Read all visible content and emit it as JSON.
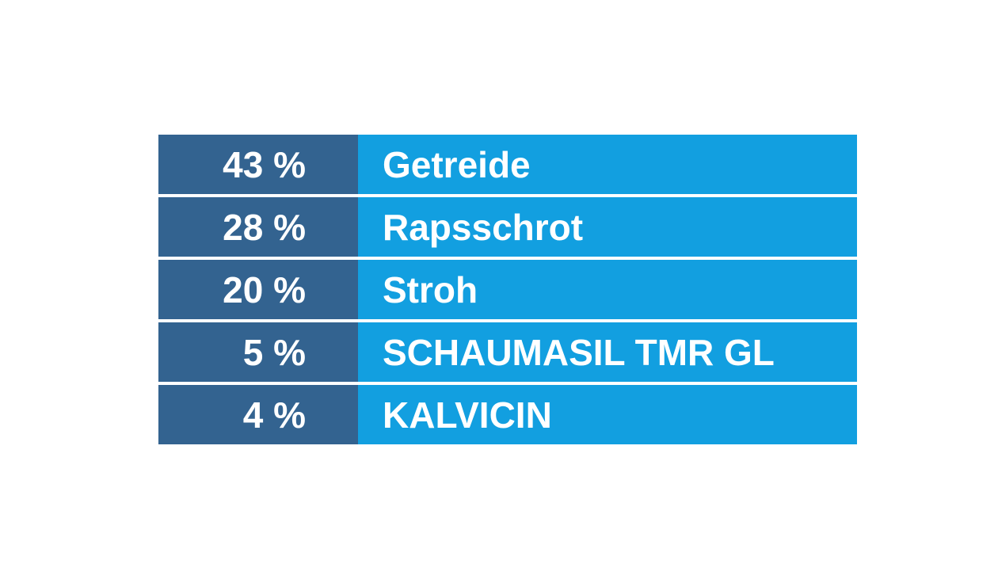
{
  "page": {
    "background_color": "#ffffff"
  },
  "table": {
    "colors": {
      "percent_cell_background": "#336390",
      "label_cell_background": "#129FE0",
      "text": "#ffffff",
      "separator": "#ffffff"
    },
    "rows": [
      {
        "percent": "43 %",
        "label": "Getreide"
      },
      {
        "percent": "28 %",
        "label": "Rapsschrot"
      },
      {
        "percent": "20 %",
        "label": "Stroh"
      },
      {
        "percent": "5 %",
        "label": "SCHAUMASIL TMR GL"
      },
      {
        "percent": "4 %",
        "label": "KALVICIN"
      }
    ]
  },
  "chart_data": {
    "type": "table",
    "categories": [
      "Getreide",
      "Rapsschrot",
      "Stroh",
      "SCHAUMASIL TMR GL",
      "KALVICIN"
    ],
    "values": [
      43,
      28,
      20,
      5,
      4
    ],
    "unit": "%",
    "title": "",
    "legend_position": "none",
    "notes": "Two-column ration composition table: dark blue percentage column (right-aligned), light blue ingredient column (left-aligned), white row separators"
  }
}
